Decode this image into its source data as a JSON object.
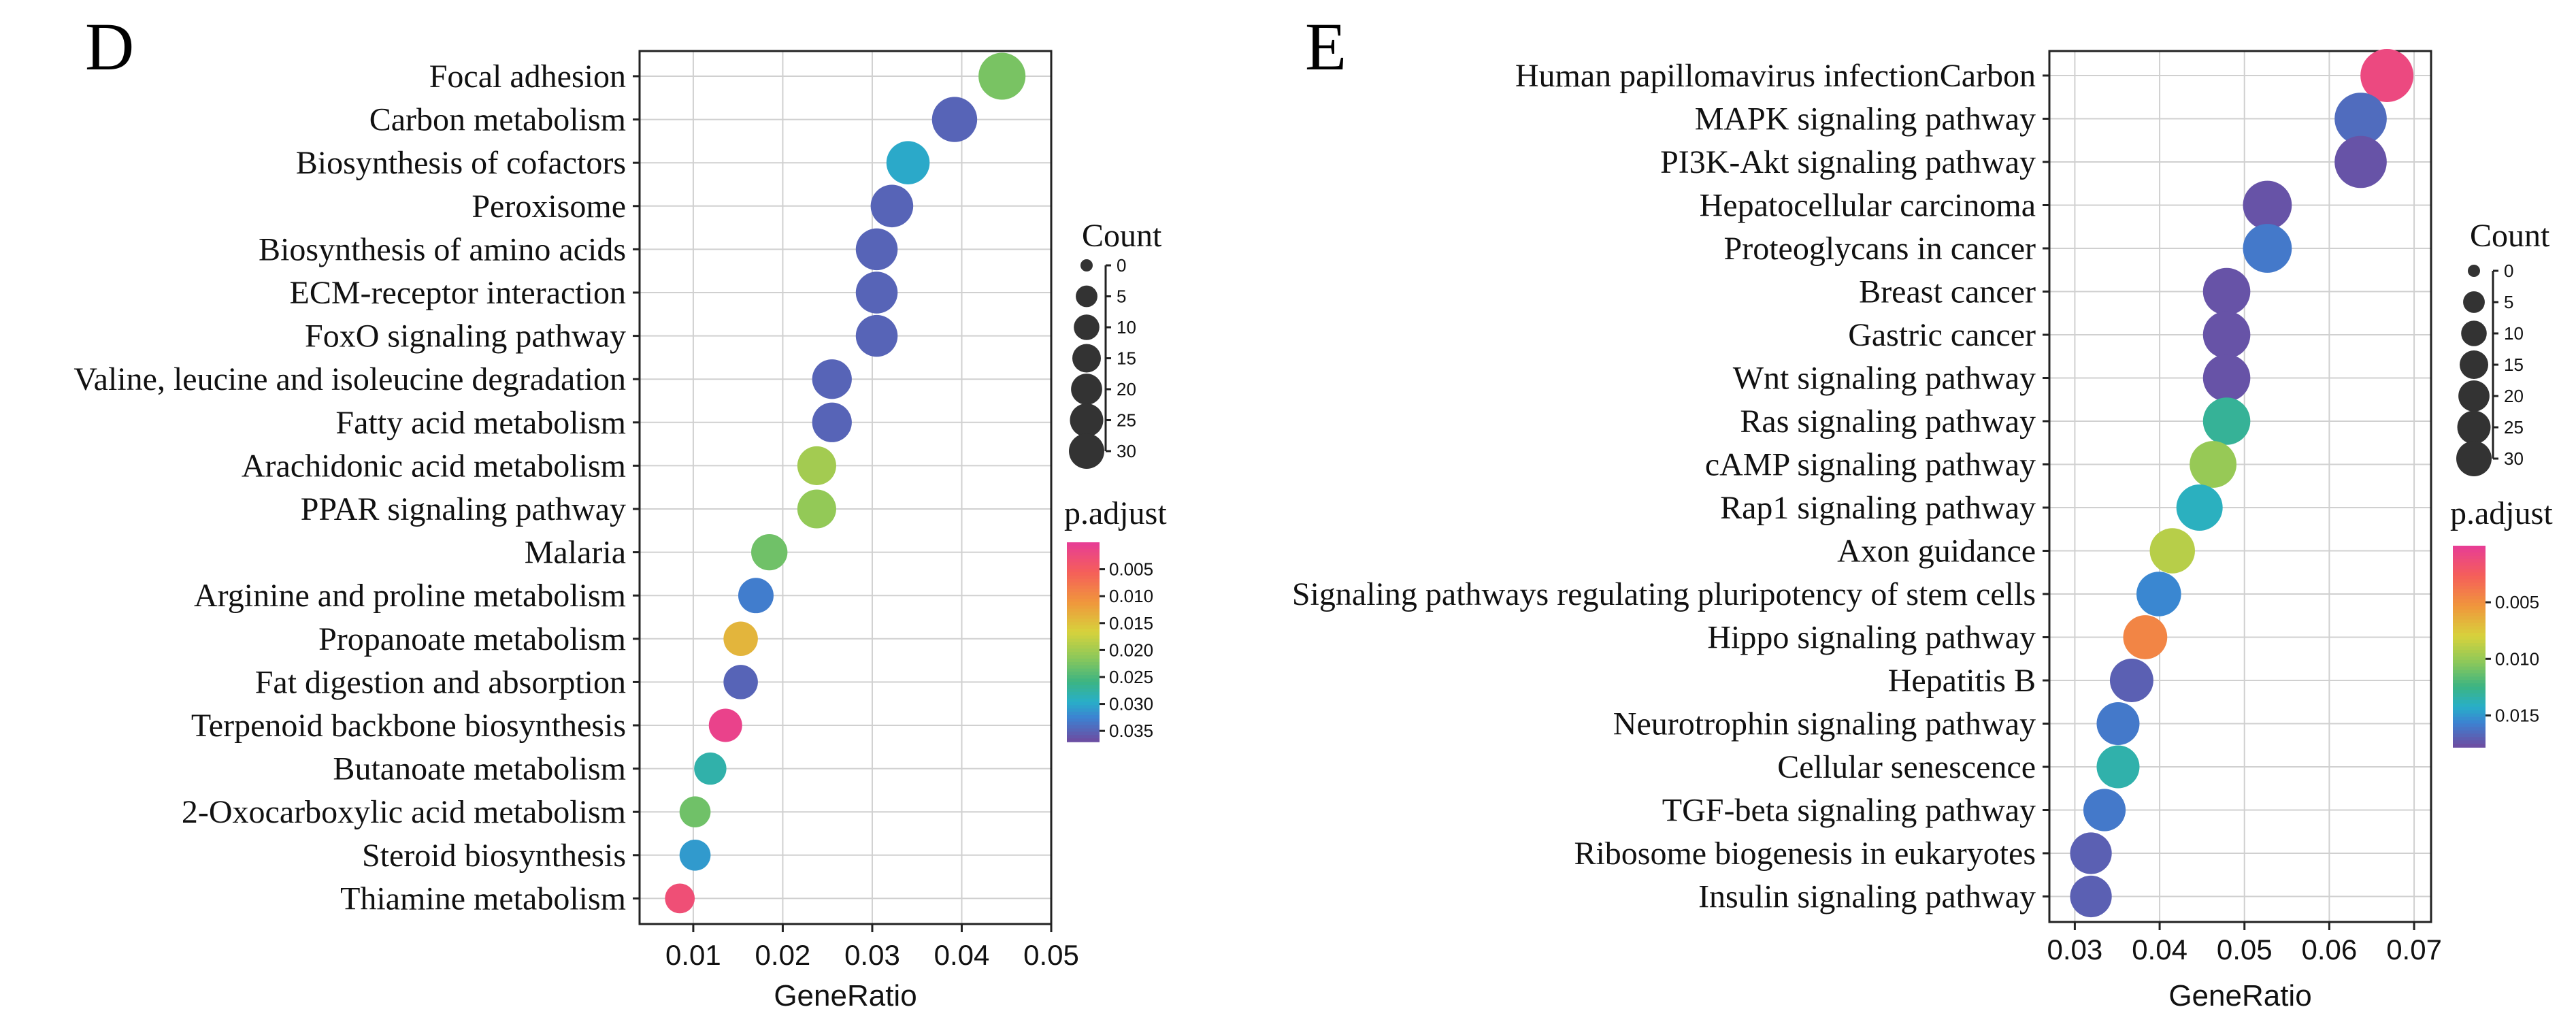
{
  "chart_data": [
    {
      "panel": "D",
      "type": "scatter",
      "xlabel": "GeneRatio",
      "xlim": [
        0.004,
        0.05
      ],
      "xticks": [
        0.01,
        0.02,
        0.03,
        0.04,
        0.05
      ],
      "xtick_labels": [
        "0.01",
        "0.02",
        "0.03",
        "0.04",
        "0.05"
      ],
      "categories": [
        "Focal adhesion",
        "Carbon metabolism",
        "Biosynthesis of cofactors",
        "Peroxisome",
        "Biosynthesis of amino acids",
        "ECM-receptor interaction",
        "FoxO signaling pathway",
        "Valine, leucine and isoleucine degradation",
        "Fatty acid metabolism",
        "Arachidonic acid metabolism",
        "PPAR signaling pathway",
        "Malaria",
        "Arginine and proline metabolism",
        "Propanoate metabolism",
        "Fat digestion and absorption",
        "Terpenoid backbone biosynthesis",
        "Butanoate metabolism",
        "2-Oxocarboxylic acid metabolism",
        "Steroid biosynthesis",
        "Thiamine metabolism"
      ],
      "gene_ratio": [
        0.0445,
        0.0392,
        0.034,
        0.0322,
        0.0305,
        0.0305,
        0.0305,
        0.0255,
        0.0255,
        0.0238,
        0.0238,
        0.0185,
        0.017,
        0.0153,
        0.0153,
        0.0136,
        0.0119,
        0.0102,
        0.0102,
        0.0085
      ],
      "count": [
        26,
        23,
        20,
        19,
        18,
        18,
        18,
        15,
        15,
        14,
        14,
        11,
        10,
        9,
        9,
        8,
        7,
        6,
        6,
        5
      ],
      "p_adjust": [
        0.0225,
        0.035,
        0.03,
        0.035,
        0.035,
        0.035,
        0.035,
        0.035,
        0.035,
        0.02,
        0.021,
        0.023,
        0.033,
        0.014,
        0.035,
        0.001,
        0.028,
        0.023,
        0.031,
        0.003
      ],
      "size_legend": {
        "title": "Count",
        "values": [
          0,
          5,
          10,
          15,
          20,
          25,
          30
        ],
        "labels": [
          "0",
          "5",
          "10",
          "15",
          "20",
          "25",
          "30"
        ]
      },
      "color_legend": {
        "title": "p.adjust",
        "range": [
          0,
          0.037
        ],
        "ticks": [
          0.005,
          0.01,
          0.015,
          0.02,
          0.025,
          0.03,
          0.035
        ],
        "labels": [
          "0.005",
          "0.010",
          "0.015",
          "0.020",
          "0.025",
          "0.030",
          "0.035"
        ]
      }
    },
    {
      "panel": "E",
      "type": "scatter",
      "xlabel": "GeneRatio",
      "xlim": [
        0.027,
        0.072
      ],
      "xticks": [
        0.03,
        0.04,
        0.05,
        0.06,
        0.07
      ],
      "xtick_labels": [
        "0.03",
        "0.04",
        "0.05",
        "0.06",
        "0.07"
      ],
      "categories": [
        "Human papillomavirus infectionCarbon",
        "MAPK signaling pathway",
        "PI3K-Akt signaling pathway",
        "Hepatocellular carcinoma",
        "Proteoglycans in cancer",
        "Breast cancer",
        "Gastric cancer",
        "Wnt signaling pathway",
        "Ras signaling pathway",
        "cAMP signaling pathway",
        "Rap1 signaling pathway",
        "Axon guidance",
        "Signaling pathways regulating pluripotency of stem cells",
        "Hippo signaling pathway",
        "Hepatitis B",
        "Neurotrophin signaling pathway",
        "Cellular senescence",
        "TGF-beta signaling pathway",
        "Ribosome biogenesis in eukaryotes",
        "Insulin signaling pathway"
      ],
      "gene_ratio": [
        0.0668,
        0.0637,
        0.0637,
        0.0527,
        0.0527,
        0.0479,
        0.0479,
        0.0479,
        0.0479,
        0.0463,
        0.0447,
        0.0415,
        0.0399,
        0.0383,
        0.0367,
        0.0351,
        0.0351,
        0.0335,
        0.0319,
        0.0319
      ],
      "count": [
        42,
        40,
        40,
        33,
        33,
        30,
        30,
        30,
        30,
        29,
        28,
        26,
        25,
        24,
        23,
        22,
        22,
        21,
        20,
        20
      ],
      "p_adjust": [
        0.001,
        0.0165,
        0.0175,
        0.0175,
        0.016,
        0.0175,
        0.0175,
        0.0175,
        0.013,
        0.01,
        0.014,
        0.009,
        0.0155,
        0.0045,
        0.017,
        0.016,
        0.0135,
        0.016,
        0.017,
        0.017
      ],
      "size_legend": {
        "title": "Count",
        "values": [
          0,
          5,
          10,
          15,
          20,
          25,
          30
        ],
        "labels": [
          "0",
          "5",
          "10",
          "15",
          "20",
          "25",
          "30"
        ]
      },
      "color_legend": {
        "title": "p.adjust",
        "range": [
          0,
          0.0178
        ],
        "ticks": [
          0.005,
          0.01,
          0.015
        ],
        "labels": [
          "0.005",
          "0.010",
          "0.015"
        ]
      }
    }
  ]
}
